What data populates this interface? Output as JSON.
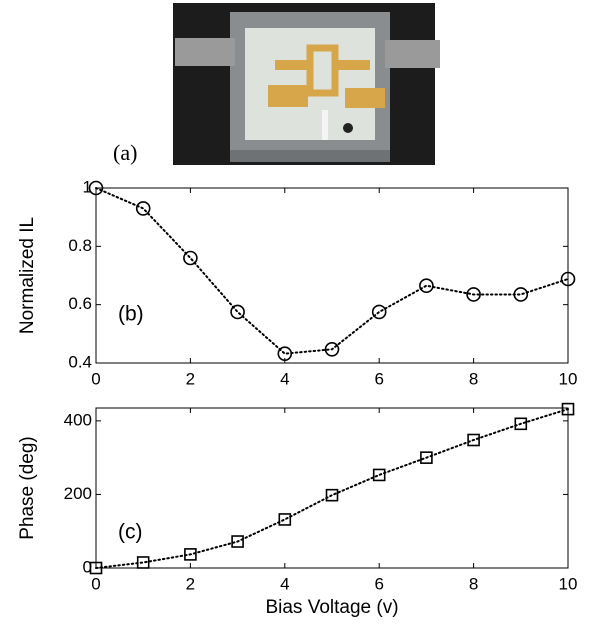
{
  "figure": {
    "label": "(a)"
  },
  "chart_data": [
    {
      "type": "line",
      "x": [
        0,
        1,
        2,
        3,
        4,
        5,
        6,
        7,
        8,
        9,
        10
      ],
      "values": [
        1.0,
        0.93,
        0.76,
        0.575,
        0.432,
        0.447,
        0.575,
        0.665,
        0.635,
        0.635,
        0.688
      ],
      "color": "#000000",
      "marker": "circle",
      "line_style": "dotted",
      "xlim": [
        0,
        10
      ],
      "xticks": [
        0,
        2,
        4,
        6,
        8,
        10
      ],
      "ylim": [
        0.4,
        1
      ],
      "yticks": [
        0.4,
        0.6,
        0.8,
        1
      ],
      "ylabel": "Normalized IL",
      "annotation": "(b)"
    },
    {
      "type": "line",
      "x": [
        0,
        1,
        2,
        3,
        4,
        5,
        6,
        7,
        8,
        9,
        10
      ],
      "values": [
        0,
        15,
        37,
        72,
        132,
        198,
        253,
        300,
        348,
        392,
        432
      ],
      "color": "#000000",
      "marker": "square",
      "line_style": "dotted",
      "xlim": [
        0,
        10
      ],
      "xticks": [
        0,
        2,
        4,
        6,
        8,
        10
      ],
      "ylim": [
        0,
        435
      ],
      "yticks": [
        0,
        200,
        400
      ],
      "xlabel": "Bias Voltage (v)",
      "ylabel": "Phase (deg)",
      "annotation": "(c)"
    }
  ]
}
